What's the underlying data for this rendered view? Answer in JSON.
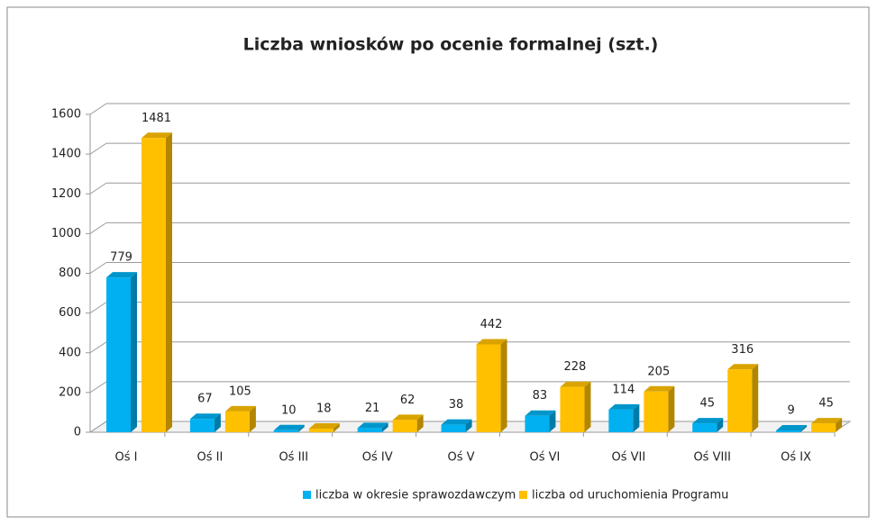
{
  "chart_data": {
    "type": "bar",
    "title": "Liczba wniosków po ocenie formalnej (szt.)",
    "categories": [
      "Oś I",
      "Oś II",
      "Oś III",
      "Oś IV",
      "Oś V",
      "Oś VI",
      "Oś VII",
      "Oś VIII",
      "Oś IX"
    ],
    "series": [
      {
        "name": "liczba w okresie sprawozdawczym",
        "color": "#00b0f0",
        "values": [
          779,
          67,
          10,
          21,
          38,
          83,
          114,
          45,
          9
        ]
      },
      {
        "name": "liczba od uruchomienia Programu",
        "color": "#ffc000",
        "values": [
          1481,
          105,
          18,
          62,
          442,
          228,
          205,
          316,
          45
        ]
      }
    ],
    "ylim": [
      0,
      1600
    ],
    "yticks": [
      0,
      200,
      400,
      600,
      800,
      1000,
      1200,
      1400,
      1600
    ],
    "grid": true,
    "legend": "bottom"
  }
}
